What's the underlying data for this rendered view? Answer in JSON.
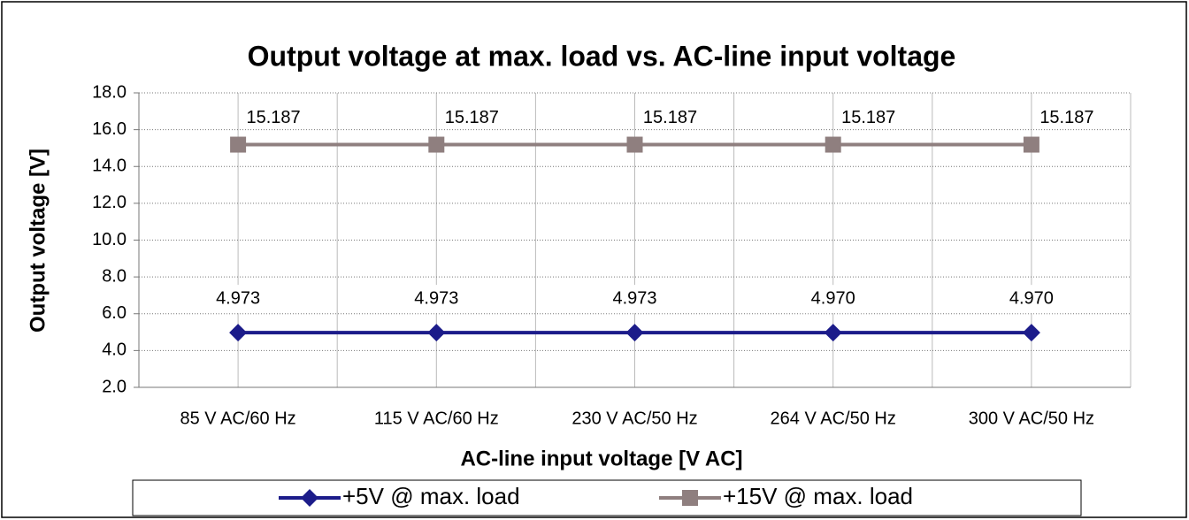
{
  "chart_data": {
    "type": "line",
    "title": "Output voltage at max. load vs. AC-line input voltage",
    "x_label": "AC-line input voltage [V AC]",
    "y_label": "Output voltage [V]",
    "categories": [
      "85 V AC/60 Hz",
      "115 V AC/60 Hz",
      "230 V AC/50 Hz",
      "264 V AC/50 Hz",
      "300 V AC/50 Hz"
    ],
    "series": [
      {
        "name": "+5V @ max. load",
        "color": "#1c1c8a",
        "marker": "diamond",
        "values": [
          4.973,
          4.973,
          4.973,
          4.97,
          4.97
        ],
        "value_labels": [
          "4.973",
          "4.973",
          "4.973",
          "4.970",
          "4.970"
        ]
      },
      {
        "name": "+15V @ max. load",
        "color": "#8f7f7f",
        "marker": "square",
        "values": [
          15.187,
          15.187,
          15.187,
          15.187,
          15.187
        ]
      }
    ],
    "ylim": [
      2,
      18
    ],
    "yticks": [
      {
        "value": 2,
        "label": "2.0"
      },
      {
        "value": 4,
        "label": "4.0"
      },
      {
        "value": 6,
        "label": "6.0"
      },
      {
        "value": 8,
        "label": "8.0"
      },
      {
        "value": 10,
        "label": "10.0"
      },
      {
        "value": 12,
        "label": "12.0"
      },
      {
        "value": 14,
        "label": "14.0"
      },
      {
        "value": 16,
        "label": "16.0"
      },
      {
        "value": 18,
        "label": "18.0"
      }
    ],
    "grid": true,
    "legend": "bottom"
  }
}
